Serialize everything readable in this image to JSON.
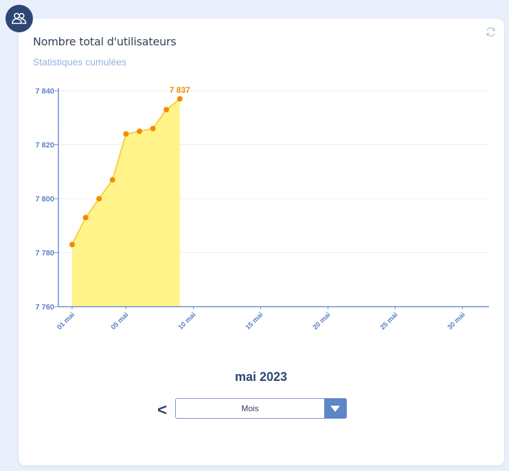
{
  "widget": {
    "title": "Nombre total d'utilisateurs",
    "subtitle": "Statistiques cumulées"
  },
  "icons": {
    "avatar": "users-icon",
    "refresh": "refresh-icon",
    "prev": "chevron-left-icon",
    "dropdown": "caret-down-icon"
  },
  "colors": {
    "area_fill": "#fff38a",
    "line": "#f5d041",
    "point": "#f08c00",
    "axis": "#6a8fcf",
    "tick_text": "#5b82c4",
    "header_bg": "#2e4673"
  },
  "chart_data": {
    "type": "area",
    "x": [
      "01 mai",
      "02 mai",
      "03 mai",
      "04 mai",
      "05 mai",
      "06 mai",
      "07 mai",
      "08 mai",
      "09 mai"
    ],
    "values": [
      7783,
      7793,
      7800,
      7807,
      7824,
      7825,
      7826,
      7833,
      7837
    ],
    "last_value_label": "7 837",
    "ylim": [
      7760,
      7840
    ],
    "yticks": [
      7760,
      7780,
      7800,
      7820,
      7840
    ],
    "ytick_labels": [
      "7 760",
      "7 780",
      "7 800",
      "7 820",
      "7 840"
    ],
    "xticks": [
      {
        "day": 1,
        "label": "01 mai"
      },
      {
        "day": 5,
        "label": "05 mai"
      },
      {
        "day": 10,
        "label": "10 mai"
      },
      {
        "day": 15,
        "label": "15 mai"
      },
      {
        "day": 20,
        "label": "20 mai"
      },
      {
        "day": 25,
        "label": "25 mai"
      },
      {
        "day": 30,
        "label": "30 mai"
      }
    ],
    "xlim_days": [
      1,
      31
    ],
    "grid": true,
    "legend": "none"
  },
  "footer": {
    "period": "mai 2023",
    "prev_label": "<",
    "granularity": "Mois"
  }
}
